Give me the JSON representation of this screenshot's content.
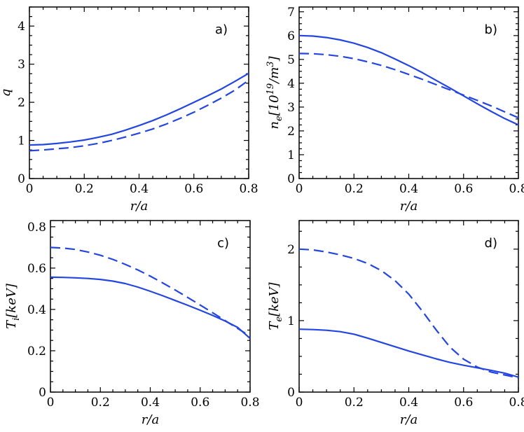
{
  "colors": {
    "line": "#2446e0",
    "axis": "#000000",
    "background": "#ffffff"
  },
  "chart_data": [
    {
      "type": "line",
      "panel_label": "a)",
      "xlabel": "r/a",
      "ylabel": "q",
      "xlim": [
        0,
        0.8
      ],
      "ylim": [
        0,
        4.5
      ],
      "xticks": [
        0,
        0.2,
        0.4,
        0.6,
        0.8
      ],
      "xtick_labels": [
        "0",
        "0.2",
        "0.4",
        "0.6",
        "0.8"
      ],
      "yticks": [
        0,
        1,
        2,
        3,
        4
      ],
      "ytick_labels": [
        "0",
        "1",
        "2",
        "3",
        "4"
      ],
      "series": [
        {
          "name": "solid",
          "style": "solid",
          "x": [
            0,
            0.05,
            0.1,
            0.15,
            0.2,
            0.25,
            0.3,
            0.35,
            0.4,
            0.45,
            0.5,
            0.55,
            0.6,
            0.65,
            0.7,
            0.75,
            0.8
          ],
          "y": [
            0.88,
            0.89,
            0.92,
            0.96,
            1.01,
            1.08,
            1.16,
            1.27,
            1.39,
            1.52,
            1.67,
            1.83,
            2.0,
            2.17,
            2.35,
            2.55,
            2.76
          ]
        },
        {
          "name": "dashed",
          "style": "dashed",
          "x": [
            0,
            0.05,
            0.1,
            0.15,
            0.2,
            0.25,
            0.3,
            0.35,
            0.4,
            0.45,
            0.5,
            0.55,
            0.6,
            0.65,
            0.7,
            0.75,
            0.8
          ],
          "y": [
            0.73,
            0.75,
            0.78,
            0.81,
            0.86,
            0.92,
            1.0,
            1.09,
            1.19,
            1.3,
            1.43,
            1.58,
            1.74,
            1.92,
            2.11,
            2.32,
            2.58
          ]
        }
      ]
    },
    {
      "type": "line",
      "panel_label": "b)",
      "xlabel": "r/a",
      "ylabel": "ne[10^19/m^3]",
      "xlim": [
        0,
        0.8
      ],
      "ylim": [
        0,
        7.2
      ],
      "xticks": [
        0,
        0.2,
        0.4,
        0.6,
        0.8
      ],
      "xtick_labels": [
        "0",
        "0.2",
        "0.4",
        "0.6",
        "0.8"
      ],
      "yticks": [
        0,
        1,
        2,
        3,
        4,
        5,
        6,
        7
      ],
      "ytick_labels": [
        "0",
        "1",
        "2",
        "3",
        "4",
        "5",
        "6",
        "7"
      ],
      "series": [
        {
          "name": "solid",
          "style": "solid",
          "x": [
            0,
            0.05,
            0.1,
            0.15,
            0.2,
            0.25,
            0.3,
            0.35,
            0.4,
            0.45,
            0.5,
            0.55,
            0.6,
            0.65,
            0.7,
            0.75,
            0.8
          ],
          "y": [
            6.0,
            5.98,
            5.92,
            5.82,
            5.68,
            5.5,
            5.28,
            5.02,
            4.74,
            4.44,
            4.12,
            3.8,
            3.47,
            3.14,
            2.82,
            2.52,
            2.25
          ]
        },
        {
          "name": "dashed",
          "style": "dashed",
          "x": [
            0,
            0.05,
            0.1,
            0.15,
            0.2,
            0.25,
            0.3,
            0.35,
            0.4,
            0.45,
            0.5,
            0.55,
            0.6,
            0.65,
            0.7,
            0.75,
            0.8
          ],
          "y": [
            5.25,
            5.24,
            5.2,
            5.13,
            5.03,
            4.9,
            4.75,
            4.57,
            4.37,
            4.16,
            3.94,
            3.72,
            3.5,
            3.28,
            3.05,
            2.8,
            2.55
          ]
        }
      ]
    },
    {
      "type": "line",
      "panel_label": "c)",
      "xlabel": "r/a",
      "ylabel": "Ti[keV]",
      "xlim": [
        0,
        0.8
      ],
      "ylim": [
        0,
        0.83
      ],
      "xticks": [
        0,
        0.2,
        0.4,
        0.6,
        0.8
      ],
      "xtick_labels": [
        "0",
        "0.2",
        "0.4",
        "0.6",
        "0.8"
      ],
      "yticks": [
        0,
        0.2,
        0.4,
        0.6,
        0.8
      ],
      "ytick_labels": [
        "0",
        "0.2",
        "0.4",
        "0.6",
        "0.8"
      ],
      "series": [
        {
          "name": "solid",
          "style": "solid",
          "x": [
            0,
            0.05,
            0.1,
            0.15,
            0.2,
            0.25,
            0.3,
            0.35,
            0.4,
            0.45,
            0.5,
            0.55,
            0.6,
            0.65,
            0.7,
            0.75,
            0.8
          ],
          "y": [
            0.556,
            0.555,
            0.553,
            0.55,
            0.545,
            0.537,
            0.525,
            0.508,
            0.488,
            0.466,
            0.443,
            0.42,
            0.396,
            0.371,
            0.344,
            0.313,
            0.26
          ]
        },
        {
          "name": "dashed",
          "style": "dashed",
          "x": [
            0,
            0.05,
            0.1,
            0.15,
            0.2,
            0.25,
            0.3,
            0.35,
            0.4,
            0.45,
            0.5,
            0.55,
            0.6,
            0.65,
            0.7,
            0.75,
            0.8
          ],
          "y": [
            0.7,
            0.697,
            0.69,
            0.678,
            0.662,
            0.642,
            0.618,
            0.591,
            0.561,
            0.528,
            0.494,
            0.458,
            0.421,
            0.384,
            0.346,
            0.308,
            0.27
          ]
        }
      ]
    },
    {
      "type": "line",
      "panel_label": "d)",
      "xlabel": "r/a",
      "ylabel": "Te[keV]",
      "xlim": [
        0,
        0.8
      ],
      "ylim": [
        0,
        2.4
      ],
      "xticks": [
        0,
        0.2,
        0.4,
        0.6,
        0.8
      ],
      "xtick_labels": [
        "0",
        "0.2",
        "0.4",
        "0.6",
        "0.8"
      ],
      "yticks": [
        0,
        1,
        2
      ],
      "ytick_labels": [
        "0",
        "1",
        "2"
      ],
      "series": [
        {
          "name": "solid",
          "style": "solid",
          "x": [
            0,
            0.05,
            0.1,
            0.15,
            0.2,
            0.25,
            0.3,
            0.35,
            0.4,
            0.45,
            0.5,
            0.55,
            0.6,
            0.65,
            0.7,
            0.75,
            0.8
          ],
          "y": [
            0.88,
            0.875,
            0.865,
            0.845,
            0.81,
            0.755,
            0.695,
            0.635,
            0.575,
            0.52,
            0.465,
            0.415,
            0.375,
            0.34,
            0.305,
            0.265,
            0.21
          ]
        },
        {
          "name": "dashed",
          "style": "dashed",
          "x": [
            0,
            0.05,
            0.1,
            0.15,
            0.2,
            0.25,
            0.3,
            0.35,
            0.4,
            0.45,
            0.5,
            0.55,
            0.6,
            0.65,
            0.7,
            0.75,
            0.8
          ],
          "y": [
            2.0,
            1.99,
            1.96,
            1.92,
            1.87,
            1.8,
            1.7,
            1.56,
            1.37,
            1.13,
            0.87,
            0.63,
            0.46,
            0.35,
            0.28,
            0.24,
            0.2
          ]
        }
      ]
    }
  ]
}
